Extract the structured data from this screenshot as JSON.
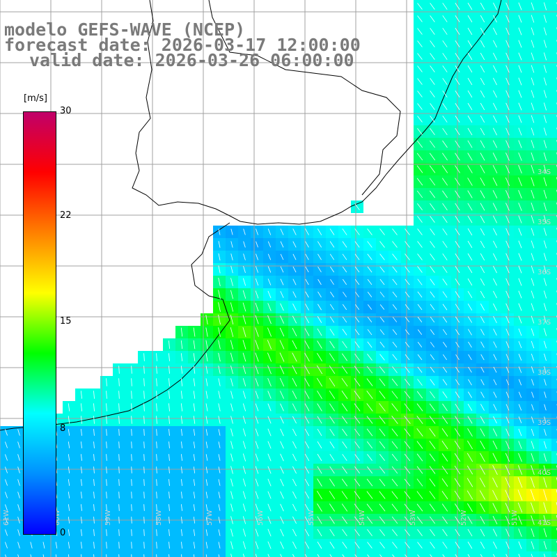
{
  "header": {
    "model_line": "modelo GEFS-WAVE (NCEP)",
    "forecast_line": "forecast date: 2026-03-17 12:00:00",
    "valid_line": "valid date: 2026-03-26 06:00:00"
  },
  "colorbar": {
    "unit": "[m/s]",
    "ticks": [
      "30",
      "22",
      "15",
      "8",
      "0"
    ],
    "tick_values": [
      30,
      22,
      15,
      8,
      0
    ],
    "range": [
      0,
      30
    ],
    "colors": [
      "#0000ff",
      "#0090ff",
      "#00ffff",
      "#00ff00",
      "#ffff00",
      "#ff8000",
      "#ff0000",
      "#c0006a"
    ]
  },
  "grid_labels": {
    "lon": [
      "61W",
      "60W",
      "59W",
      "58W",
      "57W",
      "56W",
      "55W",
      "54W",
      "53W",
      "52W",
      "51W"
    ],
    "lat": [
      "34S",
      "35S",
      "36S",
      "37S",
      "38S",
      "39S",
      "40S",
      "41S"
    ]
  },
  "map": {
    "land_color": "#ffffff",
    "coast_color": "#000000",
    "grid_color": "#a0a0a0",
    "arrow_color": "#ffffff"
  }
}
